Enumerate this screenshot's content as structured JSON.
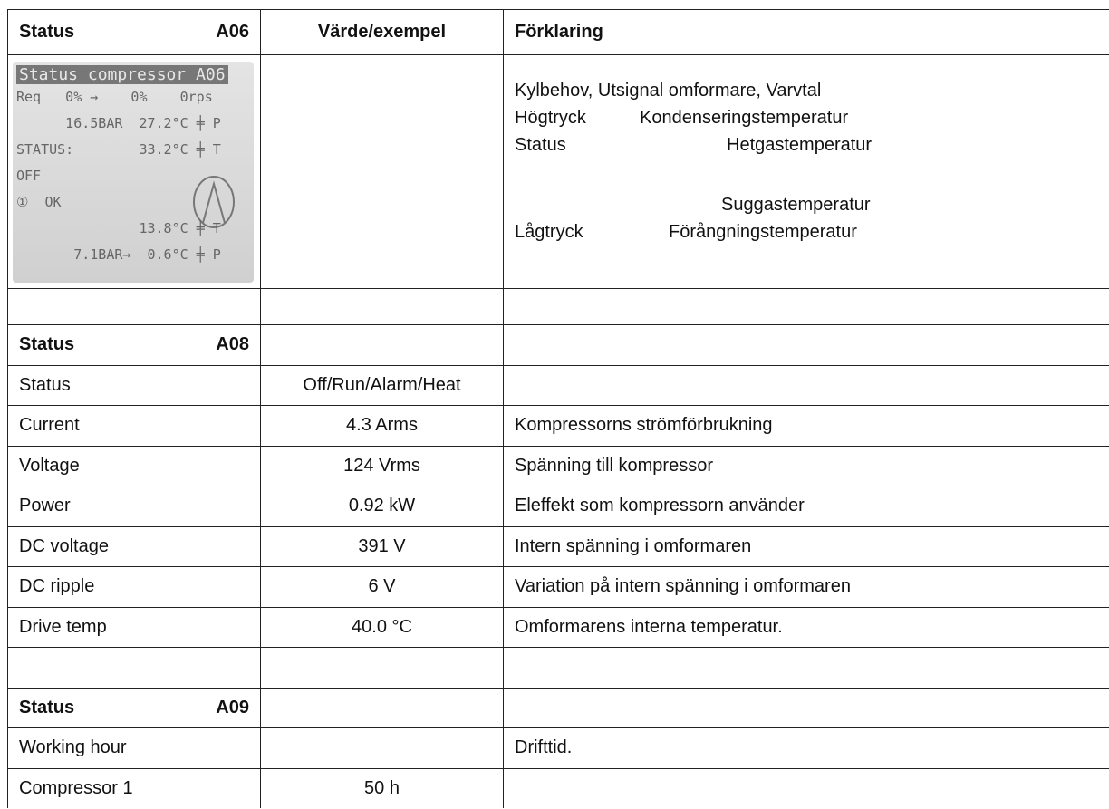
{
  "header": {
    "col1": "Status",
    "col1_code": "A06",
    "col2": "Värde/exempel",
    "col3": "Förklaring"
  },
  "lcd": {
    "title": "Status compressor A06",
    "lines": [
      "Req   0% →    0%    0rps",
      "      16.5BAR  27.2°C ╪ P",
      "STATUS:        33.2°C ╪ T",
      "OFF",
      "①  OK",
      "               13.8°C ╪ T",
      "       7.1BAR→  0.6°C ╪ P"
    ]
  },
  "explanations": [
    [
      "Kylbehov, Utsignal omformare, Varvtal"
    ],
    [
      "Högtryck",
      "Kondenseringstemperatur"
    ],
    [
      "Status",
      "Hetgastemperatur"
    ],
    [
      "Suggastemperatur"
    ],
    [
      "Lågtryck",
      "Förångningstemperatur"
    ]
  ],
  "sections": [
    {
      "title": "Status",
      "code": "A08",
      "rows": [
        [
          "Status",
          "Off/Run/Alarm/Heat",
          null
        ],
        [
          "Current",
          "4.3 Arms",
          "Kompressorns strömförbrukning"
        ],
        [
          "Voltage",
          "124 Vrms",
          "Spänning till kompressor"
        ],
        [
          "Power",
          "0.92 kW",
          "Eleffekt som kompressorn använder"
        ],
        [
          "DC voltage",
          "391 V",
          "Intern spänning i omformaren"
        ],
        [
          "DC ripple",
          "6 V",
          "Variation på intern spänning i omformaren"
        ],
        [
          "Drive temp",
          "40.0 °C",
          "Omformarens interna temperatur."
        ]
      ]
    },
    {
      "title": "Status",
      "code": "A09",
      "rows": [
        [
          "Working hour",
          null,
          "Drifttid."
        ],
        [
          "Compressor 1",
          "50 h",
          null
        ]
      ]
    }
  ]
}
